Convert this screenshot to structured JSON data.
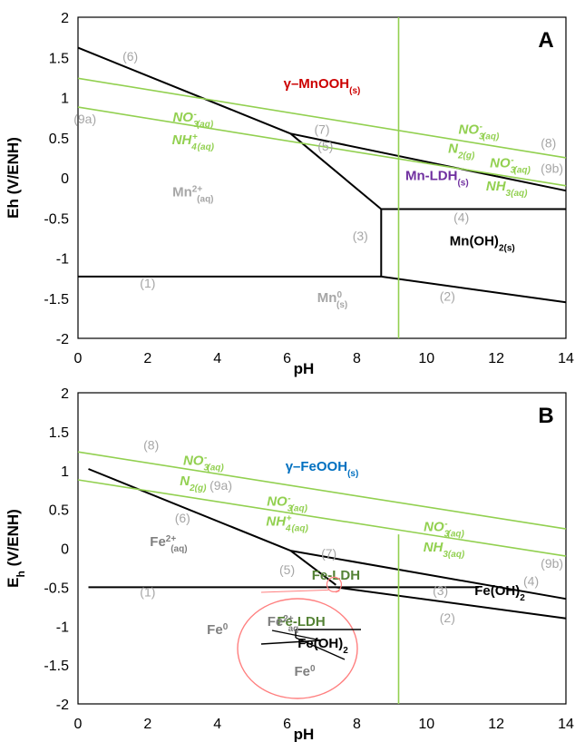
{
  "chart_data": [
    {
      "type": "line",
      "panel_letter": "A",
      "xlabel": "pH",
      "ylabel": "Eh (V/ENH)",
      "xlim": [
        0,
        14
      ],
      "ylim": [
        -2,
        2
      ],
      "xticks": [
        "0",
        "2",
        "4",
        "6",
        "8",
        "10",
        "12",
        "14"
      ],
      "yticks": [
        "2",
        "1.5",
        "1",
        "0.5",
        "0",
        "-0.5",
        "-1",
        "-1.5",
        "-2"
      ],
      "series": [
        {
          "color": "#000000",
          "points": [
            [
              0,
              -1.23
            ],
            [
              8.7,
              -1.23
            ]
          ]
        },
        {
          "color": "#000000",
          "points": [
            [
              8.7,
              -1.23
            ],
            [
              14,
              -1.55
            ]
          ]
        },
        {
          "color": "#000000",
          "points": [
            [
              8.7,
              -0.39
            ],
            [
              8.7,
              -1.23
            ]
          ]
        },
        {
          "color": "#000000",
          "points": [
            [
              8.7,
              -0.39
            ],
            [
              14,
              -0.39
            ]
          ]
        },
        {
          "color": "#000000",
          "points": [
            [
              6.1,
              0.55
            ],
            [
              8.7,
              -0.39
            ]
          ]
        },
        {
          "color": "#000000",
          "points": [
            [
              0,
              1.62
            ],
            [
              6.1,
              0.55
            ]
          ]
        },
        {
          "color": "#000000",
          "points": [
            [
              6.1,
              0.55
            ],
            [
              14,
              -0.16
            ]
          ]
        },
        {
          "color": "#92d050",
          "points": [
            [
              0,
              1.24
            ],
            [
              14,
              0.25
            ]
          ]
        },
        {
          "color": "#92d050",
          "points": [
            [
              0,
              0.88
            ],
            [
              14,
              -0.1
            ]
          ]
        },
        {
          "color": "#92d050",
          "points": [
            [
              9.2,
              2
            ],
            [
              9.2,
              -2
            ]
          ]
        }
      ],
      "labels": [
        {
          "text": "(1)",
          "x": 2.0,
          "y": -1.37,
          "kind": "num"
        },
        {
          "text": "(2)",
          "x": 10.6,
          "y": -1.53,
          "kind": "num"
        },
        {
          "text": "(3)",
          "x": 8.1,
          "y": -0.78,
          "kind": "num"
        },
        {
          "text": "(4)",
          "x": 11.0,
          "y": -0.55,
          "kind": "num"
        },
        {
          "text": "(5)",
          "x": 7.1,
          "y": 0.34,
          "kind": "num"
        },
        {
          "text": "(6)",
          "x": 1.5,
          "y": 1.46,
          "kind": "num"
        },
        {
          "text": "(7)",
          "x": 7.0,
          "y": 0.55,
          "kind": "num"
        },
        {
          "text": "(8)",
          "x": 13.5,
          "y": 0.38,
          "kind": "num"
        },
        {
          "text": "(9a)",
          "x": 0.2,
          "y": 0.68,
          "kind": "num"
        },
        {
          "text": "(9b)",
          "x": 13.6,
          "y": 0.06,
          "kind": "num"
        }
      ],
      "regions": [
        {
          "base": "γ–MnOOH",
          "sub": "(s)",
          "sup": "",
          "after": "",
          "x": 7.0,
          "y": 1.12,
          "color": "#cc0000"
        },
        {
          "base": "Mn",
          "sup": "2+",
          "sub": "(aq)",
          "after": "",
          "x": 3.3,
          "y": -0.23,
          "color": "#a6a6a6"
        },
        {
          "base": "Mn-LDH",
          "sub": "(s)",
          "sup": "",
          "after": "",
          "x": 10.3,
          "y": -0.03,
          "color": "#7030a0"
        },
        {
          "base": "Mn(OH)",
          "sub": "2(s)",
          "sup": "",
          "after": "",
          "x": 11.6,
          "y": -0.84,
          "color": "#000000"
        },
        {
          "base": "Mn",
          "sup": "0",
          "sub": "(s)",
          "after": "",
          "x": 7.3,
          "y": -1.55,
          "color": "#a6a6a6"
        }
      ],
      "species": [
        {
          "base": "NO",
          "sub": "3",
          "sup": "-",
          "tail": "(aq)",
          "x": 3.3,
          "y": 0.7
        },
        {
          "base": "NH",
          "sub": "4",
          "sup": "+",
          "tail": "(aq)",
          "x": 3.3,
          "y": 0.42
        },
        {
          "base": "NO",
          "sub": "3",
          "sup": "-",
          "tail": "(aq)",
          "x": 11.5,
          "y": 0.55
        },
        {
          "base": "N",
          "sub": "",
          "sup": "",
          "tail": "2(g)",
          "x": 11.0,
          "y": 0.31
        },
        {
          "base": "NO",
          "sub": "3",
          "sup": "-",
          "tail": "(aq)",
          "x": 12.4,
          "y": 0.13
        },
        {
          "base": "NH",
          "sub": "",
          "sup": "",
          "tail": "3(aq)",
          "x": 12.3,
          "y": -0.16
        }
      ]
    },
    {
      "type": "line",
      "panel_letter": "B",
      "xlabel": "pH",
      "ylabel": "E",
      "ylabel_sub": "h",
      "ylabel_tail": " (V/ENH)",
      "xlim": [
        0,
        14
      ],
      "ylim": [
        -2,
        2
      ],
      "xticks": [
        "0",
        "2",
        "4",
        "6",
        "8",
        "10",
        "12",
        "14"
      ],
      "yticks": [
        "2",
        "1.5",
        "1",
        "0.5",
        "0",
        "-0.5",
        "-1",
        "-1.5",
        "-2"
      ],
      "series": [
        {
          "color": "#000000",
          "points": [
            [
              0.3,
              1.02
            ],
            [
              6.1,
              -0.03
            ]
          ]
        },
        {
          "color": "#000000",
          "points": [
            [
              6.1,
              -0.03
            ],
            [
              14,
              -0.65
            ]
          ]
        },
        {
          "color": "#000000",
          "points": [
            [
              6.1,
              -0.03
            ],
            [
              7.4,
              -0.47
            ]
          ]
        },
        {
          "color": "#000000",
          "points": [
            [
              0.3,
              -0.5
            ],
            [
              11.5,
              -0.5
            ]
          ]
        },
        {
          "color": "#000000",
          "points": [
            [
              7.4,
              -0.5
            ],
            [
              14,
              -0.9
            ]
          ]
        },
        {
          "color": "#92d050",
          "points": [
            [
              0,
              1.24
            ],
            [
              14,
              0.25
            ]
          ]
        },
        {
          "color": "#92d050",
          "points": [
            [
              0,
              0.88
            ],
            [
              14,
              -0.1
            ]
          ]
        },
        {
          "color": "#92d050",
          "points": [
            [
              9.2,
              0.18
            ],
            [
              9.2,
              -2
            ]
          ]
        }
      ],
      "labels": [
        {
          "text": "(1)",
          "x": 2.0,
          "y": -0.62,
          "kind": "num"
        },
        {
          "text": "(2)",
          "x": 10.6,
          "y": -0.95,
          "kind": "num"
        },
        {
          "text": "(3)",
          "x": 10.4,
          "y": -0.6,
          "kind": "num"
        },
        {
          "text": "(4)",
          "x": 13.0,
          "y": -0.48,
          "kind": "num"
        },
        {
          "text": "(5)",
          "x": 6.0,
          "y": -0.33,
          "kind": "num"
        },
        {
          "text": "(6)",
          "x": 3.0,
          "y": 0.33,
          "kind": "num"
        },
        {
          "text": "(7)",
          "x": 7.2,
          "y": -0.12,
          "kind": "num"
        },
        {
          "text": "(8)",
          "x": 2.1,
          "y": 1.27,
          "kind": "num"
        },
        {
          "text": "(9a)",
          "x": 4.1,
          "y": 0.75,
          "kind": "num"
        },
        {
          "text": "(9b)",
          "x": 13.6,
          "y": -0.25,
          "kind": "num"
        }
      ],
      "regions": [
        {
          "base": "γ–FeOOH",
          "sub": "(s)",
          "sup": "",
          "after": "",
          "x": 7.0,
          "y": 1.0,
          "color": "#0070c0"
        },
        {
          "base": "Fe",
          "sup": "2+",
          "sub": "(aq)",
          "after": "",
          "x": 2.6,
          "y": 0.03,
          "color": "#7f7f7f"
        },
        {
          "base": "Fe-LDH",
          "sub": "",
          "sup": "",
          "after": "",
          "x": 7.4,
          "y": -0.4,
          "color": "#548235"
        },
        {
          "base": "Fe(OH)",
          "sub": "2",
          "sup": "",
          "after": "",
          "x": 12.1,
          "y": -0.6,
          "color": "#000000"
        },
        {
          "base": "Fe",
          "sup": "0",
          "sub": "",
          "after": "",
          "x": 4.0,
          "y": -1.1,
          "color": "#7f7f7f"
        }
      ],
      "species": [
        {
          "base": "NO",
          "sub": "3",
          "sup": "-",
          "tail": "(aq)",
          "x": 3.6,
          "y": 1.07
        },
        {
          "base": "N",
          "sub": "",
          "sup": "",
          "tail": "2(g)",
          "x": 3.3,
          "y": 0.81
        },
        {
          "base": "NO",
          "sub": "3",
          "sup": "-",
          "tail": "(aq)",
          "x": 6.0,
          "y": 0.55
        },
        {
          "base": "NH",
          "sub": "4",
          "sup": "+",
          "tail": "(aq)",
          "x": 6.0,
          "y": 0.29
        },
        {
          "base": "NO",
          "sub": "3",
          "sup": "-",
          "tail": "(aq)",
          "x": 10.5,
          "y": 0.22
        },
        {
          "base": "NH",
          "sub": "",
          "sup": "",
          "tail": "3(aq)",
          "x": 10.5,
          "y": -0.04
        }
      ],
      "inset": {
        "labels": [
          {
            "base": "Fe-LDH",
            "sub": "",
            "sup": "",
            "color": "#548235"
          },
          {
            "base": "Fe",
            "sup": "2+",
            "sub": "aq",
            "color": "#7f7f7f"
          },
          {
            "base": "Fe(OH)",
            "sub": "2",
            "sup": "",
            "color": "#000000"
          },
          {
            "base": "Fe",
            "sup": "0",
            "sub": "",
            "color": "#7f7f7f"
          }
        ]
      }
    }
  ]
}
